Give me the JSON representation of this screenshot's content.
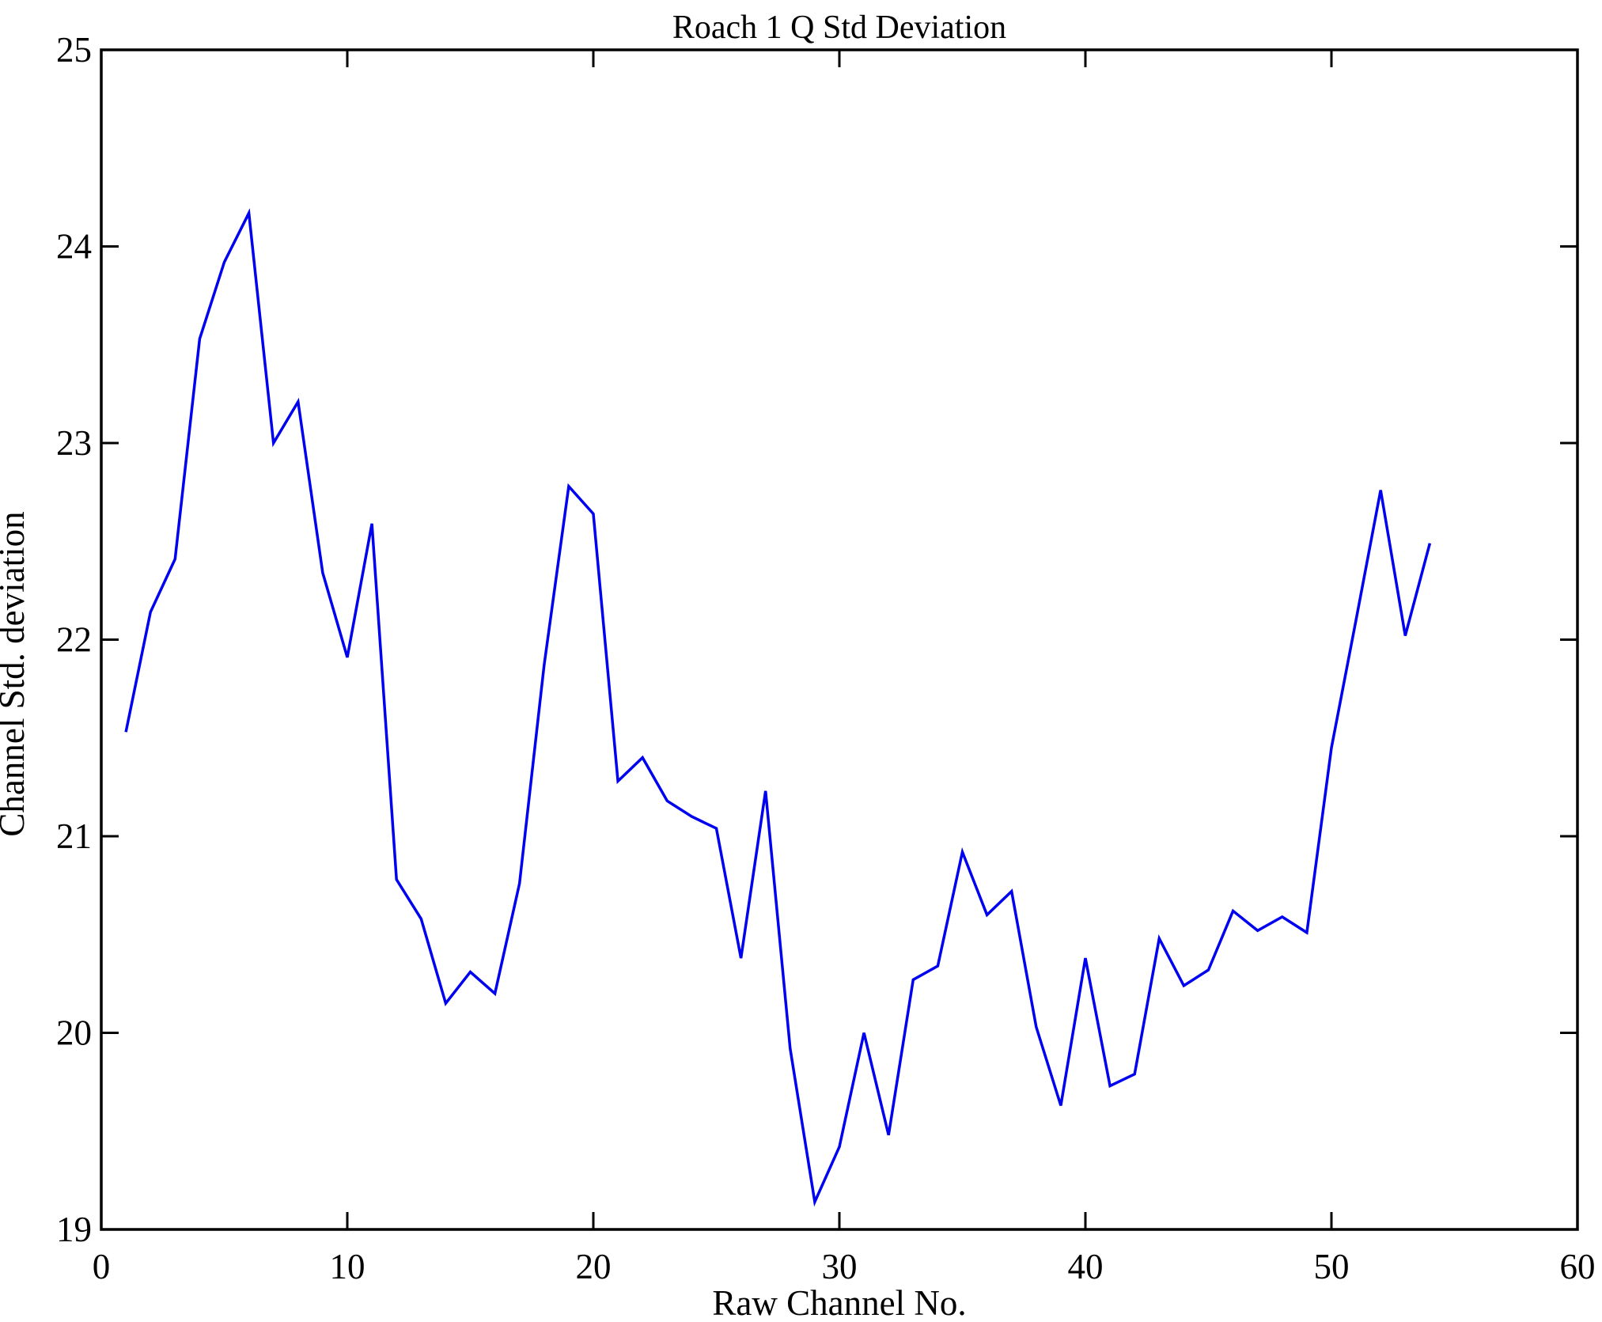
{
  "chart_data": {
    "type": "line",
    "title": "Roach 1 Q Std Deviation",
    "xlabel": "Raw Channel No.",
    "ylabel": "Channel Std. deviation",
    "xlim": [
      0,
      60
    ],
    "ylim": [
      19,
      25
    ],
    "x_tick_labels": [
      "0",
      "10",
      "20",
      "30",
      "40",
      "50",
      "60"
    ],
    "x_tick_values": [
      0,
      10,
      20,
      30,
      40,
      50,
      60
    ],
    "y_tick_labels": [
      "19",
      "20",
      "21",
      "22",
      "23",
      "24",
      "25"
    ],
    "y_tick_values": [
      19,
      20,
      21,
      22,
      23,
      24,
      25
    ],
    "grid": false,
    "legend": "none",
    "line_color": "#0000f0",
    "axis_color": "#000000",
    "background_color": "#ffffff",
    "series": [
      {
        "name": "channel-std-deviation",
        "x": [
          1,
          2,
          3,
          4,
          5,
          6,
          7,
          8,
          9,
          10,
          11,
          12,
          13,
          14,
          15,
          16,
          17,
          18,
          19,
          20,
          21,
          22,
          23,
          24,
          25,
          26,
          27,
          28,
          29,
          30,
          31,
          32,
          33,
          34,
          35,
          36,
          37,
          38,
          39,
          40,
          41,
          42,
          43,
          44,
          45,
          46,
          47,
          48,
          49,
          50,
          51,
          52,
          53,
          54
        ],
        "values": [
          21.53,
          22.14,
          22.41,
          23.53,
          23.92,
          24.17,
          23.0,
          23.21,
          22.34,
          21.91,
          22.59,
          20.78,
          20.58,
          20.15,
          20.31,
          20.2,
          20.76,
          21.87,
          22.78,
          22.64,
          21.28,
          21.4,
          21.18,
          21.1,
          21.04,
          20.38,
          21.23,
          19.92,
          19.14,
          19.42,
          20.0,
          19.48,
          20.27,
          20.34,
          20.92,
          20.6,
          20.72,
          20.03,
          19.63,
          20.38,
          19.73,
          19.79,
          20.48,
          20.24,
          20.32,
          20.62,
          20.52,
          20.59,
          20.51,
          21.45,
          22.1,
          22.76,
          22.02,
          22.49
        ]
      }
    ]
  }
}
